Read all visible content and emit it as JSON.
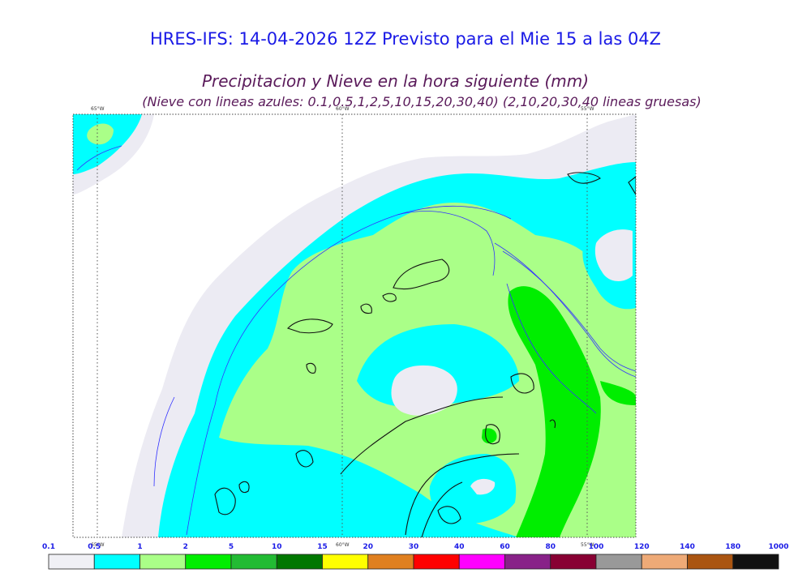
{
  "header": {
    "title": "HRES-IFS: 14-04-2026 12Z Previsto para el Mie 15 a las 04Z",
    "subtitle": "Precipitacion y Nieve en la hora siguiente (mm)",
    "note": "(Nieve con lineas azules: 0.1,0.5,1,2,5,10,15,20,30,40)  (2,10,20,30,40 lineas gruesas)"
  },
  "map": {
    "longitude_labels": [
      "65°W",
      "60°W",
      "55°W"
    ],
    "legend_bin_colors": [
      "#f0f0f5",
      "#00ffff",
      "#aaff88",
      "#00ee00",
      "#22bb33",
      "#007700",
      "#ffff00",
      "#e08020",
      "#ff0000",
      "#ff00ff",
      "#882288",
      "#880033",
      "#999999",
      "#eeaa77",
      "#aa5511",
      "#111111"
    ]
  },
  "legend": {
    "ticks": [
      "0.1",
      "0.5",
      "1",
      "2",
      "5",
      "10",
      "15",
      "20",
      "30",
      "40",
      "60",
      "80",
      "100",
      "120",
      "140",
      "180",
      "1000"
    ],
    "colors": [
      "#f0f0f5",
      "#00ffff",
      "#aaff88",
      "#00ee00",
      "#22bb33",
      "#007700",
      "#ffff00",
      "#e08020",
      "#ff0000",
      "#ff00ff",
      "#882288",
      "#880033",
      "#999999",
      "#eeaa77",
      "#aa5511",
      "#111111"
    ]
  }
}
